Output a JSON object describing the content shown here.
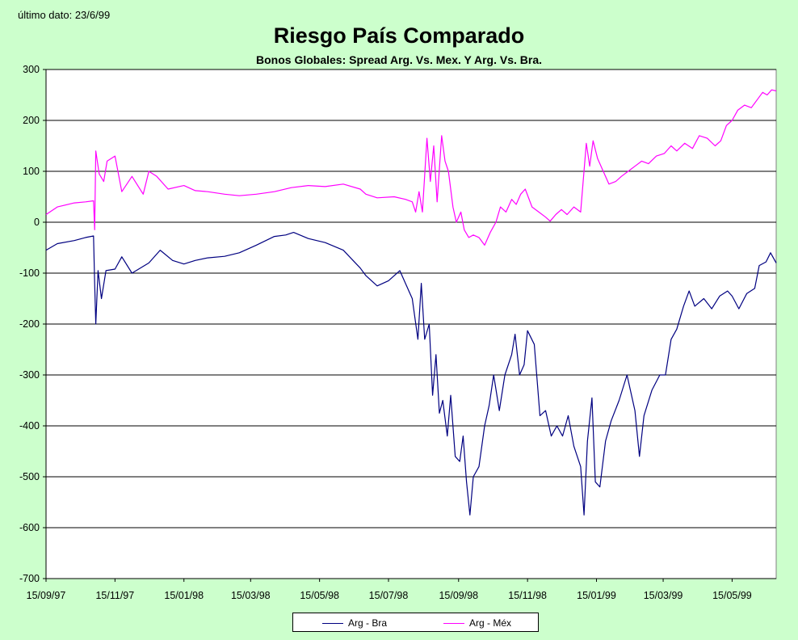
{
  "note": "último dato: 23/6/99",
  "title": "Riesgo País Comparado",
  "subtitle": "Bonos Globales: Spread Arg. Vs. Mex. Y Arg. Vs. Bra.",
  "colors": {
    "background": "#ccffcc",
    "plot_background": "#ffffff",
    "arg_bra": "#000080",
    "arg_mex": "#ff00ff",
    "grid": "#000000"
  },
  "chart_data": {
    "type": "line",
    "title": "Riesgo País Comparado",
    "subtitle": "Bonos Globales: Spread Arg. Vs. Mex. Y Arg. Vs. Bra.",
    "xlabel": "",
    "ylabel": "",
    "ylim": [
      -700,
      300
    ],
    "yticks": [
      300,
      200,
      100,
      0,
      -100,
      -200,
      -300,
      -400,
      -500,
      -600,
      -700
    ],
    "xlim": [
      "15/09/97",
      "23/06/99"
    ],
    "xticks": [
      "15/09/97",
      "15/11/97",
      "15/01/98",
      "15/03/98",
      "15/05/98",
      "15/07/98",
      "15/09/98",
      "15/11/98",
      "15/01/99",
      "15/03/99",
      "15/05/99"
    ],
    "grid": "horizontal",
    "legend_position": "bottom",
    "series": [
      {
        "name": "Arg - Bra",
        "color": "#000080",
        "points": [
          [
            "15/09/97",
            -55
          ],
          [
            "25/09/97",
            -42
          ],
          [
            "10/10/97",
            -36
          ],
          [
            "20/10/97",
            -30
          ],
          [
            "27/10/97",
            -27
          ],
          [
            "28/10/97",
            -120
          ],
          [
            "29/10/97",
            -200
          ],
          [
            "31/10/97",
            -95
          ],
          [
            "03/11/97",
            -150
          ],
          [
            "07/11/97",
            -95
          ],
          [
            "15/11/97",
            -92
          ],
          [
            "21/11/97",
            -68
          ],
          [
            "30/11/97",
            -100
          ],
          [
            "15/12/97",
            -80
          ],
          [
            "25/12/97",
            -55
          ],
          [
            "05/01/98",
            -75
          ],
          [
            "15/01/98",
            -82
          ],
          [
            "25/01/98",
            -75
          ],
          [
            "05/02/98",
            -70
          ],
          [
            "20/02/98",
            -67
          ],
          [
            "05/03/98",
            -60
          ],
          [
            "20/03/98",
            -45
          ],
          [
            "05/04/98",
            -28
          ],
          [
            "15/04/98",
            -25
          ],
          [
            "22/04/98",
            -20
          ],
          [
            "05/05/98",
            -32
          ],
          [
            "20/05/98",
            -40
          ],
          [
            "05/06/98",
            -55
          ],
          [
            "20/06/98",
            -90
          ],
          [
            "25/06/98",
            -105
          ],
          [
            "05/07/98",
            -125
          ],
          [
            "15/07/98",
            -115
          ],
          [
            "25/07/98",
            -95
          ],
          [
            "30/07/98",
            -120
          ],
          [
            "05/08/98",
            -150
          ],
          [
            "10/08/98",
            -230
          ],
          [
            "13/08/98",
            -120
          ],
          [
            "16/08/98",
            -230
          ],
          [
            "20/08/98",
            -200
          ],
          [
            "23/08/98",
            -340
          ],
          [
            "26/08/98",
            -260
          ],
          [
            "29/08/98",
            -375
          ],
          [
            "01/09/98",
            -350
          ],
          [
            "05/09/98",
            -420
          ],
          [
            "08/09/98",
            -340
          ],
          [
            "12/09/98",
            -460
          ],
          [
            "16/09/98",
            -470
          ],
          [
            "19/09/98",
            -420
          ],
          [
            "22/09/98",
            -510
          ],
          [
            "25/09/98",
            -575
          ],
          [
            "28/09/98",
            -500
          ],
          [
            "03/10/98",
            -480
          ],
          [
            "08/10/98",
            -400
          ],
          [
            "12/10/98",
            -360
          ],
          [
            "16/10/98",
            -300
          ],
          [
            "21/10/98",
            -370
          ],
          [
            "26/10/98",
            -300
          ],
          [
            "01/11/98",
            -260
          ],
          [
            "04/11/98",
            -220
          ],
          [
            "08/11/98",
            -300
          ],
          [
            "12/11/98",
            -280
          ],
          [
            "15/11/98",
            -213
          ],
          [
            "21/11/98",
            -240
          ],
          [
            "26/11/98",
            -380
          ],
          [
            "01/12/98",
            -370
          ],
          [
            "06/12/98",
            -420
          ],
          [
            "11/12/98",
            -400
          ],
          [
            "16/12/98",
            -420
          ],
          [
            "21/12/98",
            -380
          ],
          [
            "26/12/98",
            -440
          ],
          [
            "01/01/99",
            -480
          ],
          [
            "04/01/99",
            -575
          ],
          [
            "07/01/99",
            -430
          ],
          [
            "11/01/99",
            -345
          ],
          [
            "14/01/99",
            -510
          ],
          [
            "18/01/99",
            -520
          ],
          [
            "23/01/99",
            -430
          ],
          [
            "28/01/99",
            -390
          ],
          [
            "04/02/99",
            -350
          ],
          [
            "11/02/99",
            -300
          ],
          [
            "18/02/99",
            -370
          ],
          [
            "22/02/99",
            -460
          ],
          [
            "26/02/99",
            -380
          ],
          [
            "05/03/99",
            -330
          ],
          [
            "12/03/99",
            -300
          ],
          [
            "17/03/99",
            -300
          ],
          [
            "22/03/99",
            -230
          ],
          [
            "27/03/99",
            -210
          ],
          [
            "02/04/99",
            -165
          ],
          [
            "07/04/99",
            -135
          ],
          [
            "12/04/99",
            -165
          ],
          [
            "20/04/99",
            -150
          ],
          [
            "27/04/99",
            -170
          ],
          [
            "04/05/99",
            -145
          ],
          [
            "11/05/99",
            -135
          ],
          [
            "15/05/99",
            -145
          ],
          [
            "21/05/99",
            -170
          ],
          [
            "28/05/99",
            -140
          ],
          [
            "04/06/99",
            -130
          ],
          [
            "08/06/99",
            -85
          ],
          [
            "14/06/99",
            -78
          ],
          [
            "18/06/99",
            -60
          ],
          [
            "23/06/99",
            -80
          ]
        ]
      },
      {
        "name": "Arg - Méx",
        "color": "#ff00ff",
        "points": [
          [
            "15/09/97",
            15
          ],
          [
            "25/09/97",
            30
          ],
          [
            "10/10/97",
            38
          ],
          [
            "20/10/97",
            40
          ],
          [
            "27/10/97",
            42
          ],
          [
            "28/10/97",
            -15
          ],
          [
            "29/10/97",
            140
          ],
          [
            "01/11/97",
            95
          ],
          [
            "05/11/97",
            80
          ],
          [
            "08/11/97",
            120
          ],
          [
            "15/11/97",
            130
          ],
          [
            "21/11/97",
            60
          ],
          [
            "30/11/97",
            90
          ],
          [
            "10/12/97",
            55
          ],
          [
            "15/12/97",
            100
          ],
          [
            "22/12/97",
            90
          ],
          [
            "01/01/98",
            65
          ],
          [
            "15/01/98",
            72
          ],
          [
            "25/01/98",
            62
          ],
          [
            "05/02/98",
            60
          ],
          [
            "20/02/98",
            55
          ],
          [
            "05/03/98",
            52
          ],
          [
            "20/03/98",
            55
          ],
          [
            "05/04/98",
            60
          ],
          [
            "20/04/98",
            68
          ],
          [
            "05/05/98",
            72
          ],
          [
            "20/05/98",
            70
          ],
          [
            "05/06/98",
            75
          ],
          [
            "20/06/98",
            65
          ],
          [
            "25/06/98",
            55
          ],
          [
            "05/07/98",
            48
          ],
          [
            "20/07/98",
            50
          ],
          [
            "30/07/98",
            45
          ],
          [
            "05/08/98",
            40
          ],
          [
            "08/08/98",
            20
          ],
          [
            "11/08/98",
            60
          ],
          [
            "14/08/98",
            20
          ],
          [
            "18/08/98",
            165
          ],
          [
            "21/08/98",
            80
          ],
          [
            "24/08/98",
            150
          ],
          [
            "27/08/98",
            40
          ],
          [
            "31/08/98",
            170
          ],
          [
            "03/09/98",
            120
          ],
          [
            "06/09/98",
            100
          ],
          [
            "10/09/98",
            30
          ],
          [
            "13/09/98",
            0
          ],
          [
            "17/09/98",
            20
          ],
          [
            "20/09/98",
            -15
          ],
          [
            "24/09/98",
            -30
          ],
          [
            "28/09/98",
            -25
          ],
          [
            "03/10/98",
            -30
          ],
          [
            "08/10/98",
            -45
          ],
          [
            "13/10/98",
            -20
          ],
          [
            "18/10/98",
            0
          ],
          [
            "22/10/98",
            30
          ],
          [
            "27/10/98",
            20
          ],
          [
            "01/11/98",
            45
          ],
          [
            "05/11/98",
            35
          ],
          [
            "09/11/98",
            55
          ],
          [
            "13/11/98",
            65
          ],
          [
            "19/11/98",
            30
          ],
          [
            "25/11/98",
            20
          ],
          [
            "01/12/98",
            10
          ],
          [
            "05/12/98",
            2
          ],
          [
            "10/12/98",
            15
          ],
          [
            "15/12/98",
            25
          ],
          [
            "20/12/98",
            15
          ],
          [
            "26/12/98",
            30
          ],
          [
            "01/01/99",
            20
          ],
          [
            "06/01/99",
            155
          ],
          [
            "09/01/99",
            110
          ],
          [
            "12/01/99",
            160
          ],
          [
            "16/01/99",
            125
          ],
          [
            "21/01/99",
            100
          ],
          [
            "26/01/99",
            75
          ],
          [
            "01/02/99",
            80
          ],
          [
            "06/02/99",
            90
          ],
          [
            "12/02/99",
            100
          ],
          [
            "18/02/99",
            110
          ],
          [
            "24/02/99",
            120
          ],
          [
            "02/03/99",
            115
          ],
          [
            "09/03/99",
            130
          ],
          [
            "16/03/99",
            135
          ],
          [
            "22/03/99",
            150
          ],
          [
            "27/03/99",
            140
          ],
          [
            "03/04/99",
            155
          ],
          [
            "10/04/99",
            145
          ],
          [
            "16/04/99",
            170
          ],
          [
            "23/04/99",
            165
          ],
          [
            "30/04/99",
            150
          ],
          [
            "05/05/99",
            160
          ],
          [
            "10/05/99",
            190
          ],
          [
            "15/05/99",
            200
          ],
          [
            "20/05/99",
            220
          ],
          [
            "26/05/99",
            230
          ],
          [
            "01/06/99",
            225
          ],
          [
            "06/06/99",
            240
          ],
          [
            "11/06/99",
            255
          ],
          [
            "15/06/99",
            250
          ],
          [
            "19/06/99",
            260
          ],
          [
            "23/06/99",
            258
          ]
        ]
      }
    ]
  }
}
